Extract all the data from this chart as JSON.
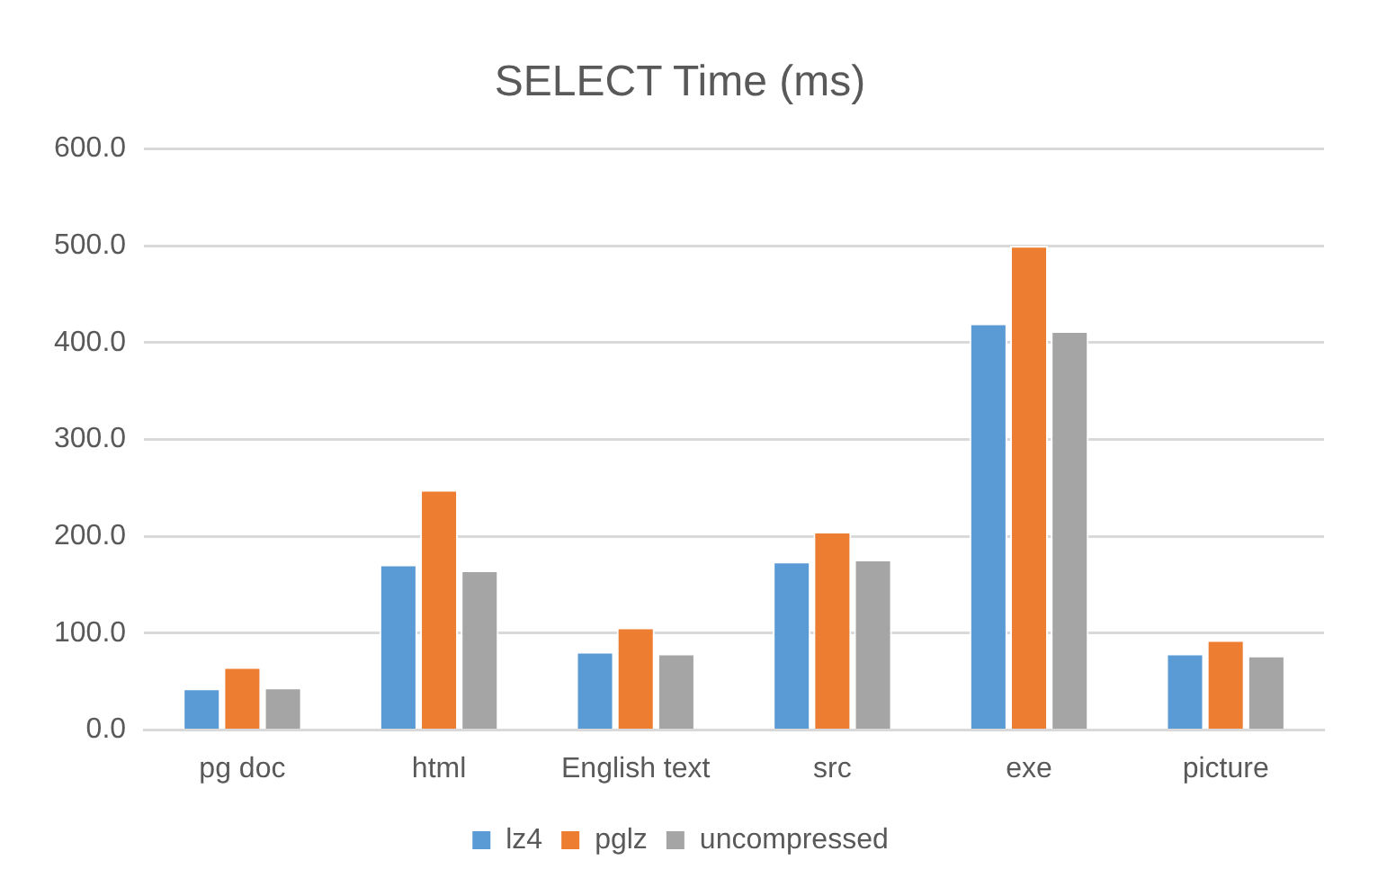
{
  "chart_data": {
    "type": "bar",
    "title": "SELECT Time (ms)",
    "categories": [
      "pg doc",
      "html",
      "English text",
      "src",
      "exe",
      "picture"
    ],
    "series": [
      {
        "name": "lz4",
        "color": "#5b9bd5",
        "values": [
          43,
          171,
          81,
          174,
          420,
          79
        ]
      },
      {
        "name": "pglz",
        "color": "#ed7d31",
        "values": [
          65,
          248,
          106,
          205,
          500,
          93
        ]
      },
      {
        "name": "uncompressed",
        "color": "#a5a5a5",
        "values": [
          44,
          165,
          79,
          176,
          412,
          77
        ]
      }
    ],
    "ylim": [
      0,
      600
    ],
    "yticks": [
      {
        "value": 0,
        "label": "0.0"
      },
      {
        "value": 100,
        "label": "100.0"
      },
      {
        "value": 200,
        "label": "200.0"
      },
      {
        "value": 300,
        "label": "300.0"
      },
      {
        "value": 400,
        "label": "400.0"
      },
      {
        "value": 500,
        "label": "500.0"
      },
      {
        "value": 600,
        "label": "600.0"
      }
    ],
    "grid": "y",
    "legend": "bottom"
  }
}
